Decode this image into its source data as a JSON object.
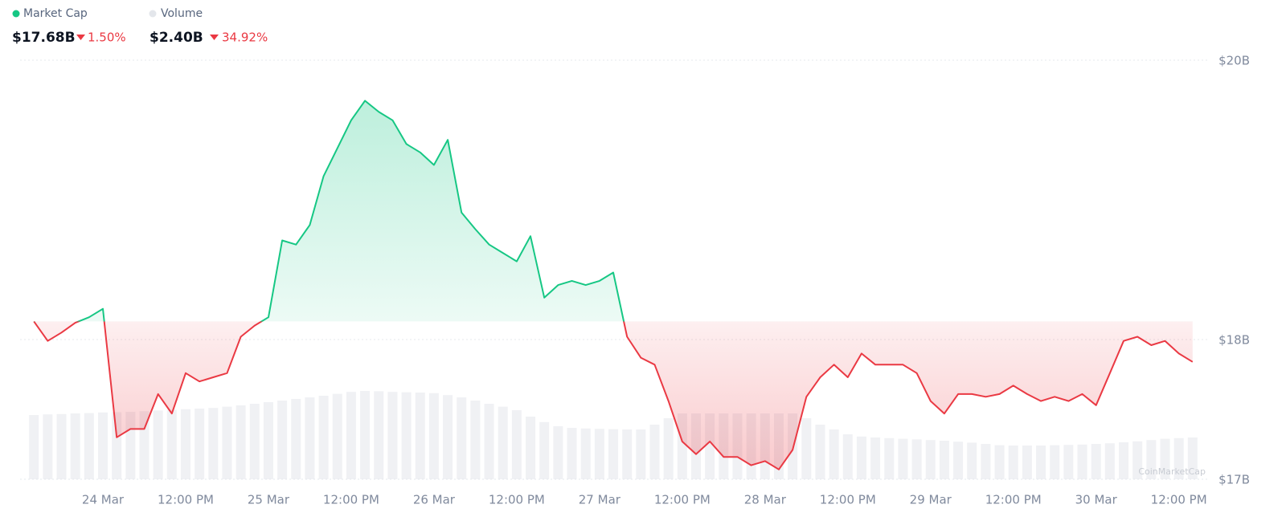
{
  "chart_data": {
    "type": "line",
    "header": {
      "series_labels": [
        "Market Cap",
        "Volume"
      ],
      "values": [
        "$17.68B",
        "$2.40B"
      ],
      "changes": [
        "1.50%",
        "34.92%"
      ]
    },
    "watermark": "CoinMarketCap",
    "x": [
      -10,
      -8,
      -6,
      -4,
      -2,
      0,
      2,
      4,
      6,
      8,
      10,
      12,
      14,
      16,
      18,
      20,
      22,
      24,
      26,
      28,
      30,
      32,
      34,
      36,
      38,
      40,
      42,
      44,
      46,
      48,
      50,
      52,
      54,
      56,
      58,
      60,
      62,
      64,
      66,
      68,
      70,
      72,
      74,
      76,
      78,
      80,
      82,
      84,
      86,
      88,
      90,
      92,
      94,
      96,
      98,
      100,
      102,
      104,
      106,
      108,
      110,
      112,
      114,
      116,
      118,
      120,
      122,
      124,
      126,
      128,
      130,
      132,
      134,
      136,
      138,
      140,
      142,
      144,
      146,
      148,
      150,
      152,
      154,
      156,
      158
    ],
    "series": [
      {
        "name": "Market Cap",
        "color": "#16c784",
        "down_color": "#ea3943",
        "values": [
          18.13,
          17.99,
          18.05,
          18.12,
          18.16,
          18.22,
          17.3,
          17.36,
          17.36,
          17.61,
          17.47,
          17.76,
          17.7,
          17.73,
          17.76,
          18.02,
          18.1,
          18.16,
          18.71,
          18.68,
          18.82,
          19.17,
          19.37,
          19.57,
          19.71,
          19.63,
          19.57,
          19.4,
          19.34,
          19.25,
          19.43,
          18.91,
          18.79,
          18.68,
          18.62,
          18.56,
          18.74,
          18.3,
          18.39,
          18.42,
          18.39,
          18.42,
          18.48,
          18.02,
          17.87,
          17.82,
          17.56,
          17.27,
          17.18,
          17.27,
          17.16,
          17.16,
          17.1,
          17.13,
          17.07,
          17.21,
          17.59,
          17.73,
          17.82,
          17.73,
          17.9,
          17.82,
          17.82,
          17.82,
          17.76,
          17.56,
          17.47,
          17.61,
          17.61,
          17.59,
          17.61,
          17.67,
          17.61,
          17.56,
          17.59,
          17.56,
          17.61,
          17.53,
          17.76,
          17.99,
          18.02,
          17.96,
          17.99,
          17.9,
          17.84
        ]
      },
      {
        "name": "Volume",
        "color": "#e3e6eb",
        "values": [
          2.0,
          2.02,
          2.03,
          2.05,
          2.06,
          2.08,
          2.09,
          2.1,
          2.12,
          2.14,
          2.16,
          2.18,
          2.2,
          2.22,
          2.26,
          2.3,
          2.35,
          2.4,
          2.45,
          2.5,
          2.55,
          2.6,
          2.66,
          2.72,
          2.75,
          2.74,
          2.72,
          2.71,
          2.7,
          2.68,
          2.62,
          2.55,
          2.45,
          2.35,
          2.26,
          2.15,
          1.95,
          1.78,
          1.65,
          1.6,
          1.58,
          1.57,
          1.56,
          1.55,
          1.55,
          1.7,
          1.9,
          2.05,
          2.05,
          2.05,
          2.05,
          2.05,
          2.05,
          2.05,
          2.05,
          2.05,
          1.9,
          1.7,
          1.55,
          1.4,
          1.33,
          1.3,
          1.28,
          1.26,
          1.24,
          1.22,
          1.2,
          1.17,
          1.14,
          1.1,
          1.06,
          1.05,
          1.05,
          1.05,
          1.06,
          1.07,
          1.08,
          1.1,
          1.12,
          1.15,
          1.18,
          1.22,
          1.26,
          1.28,
          1.3
        ]
      }
    ],
    "reference_value": 18.13,
    "xlim": [
      -10.5,
      160
    ],
    "xticks": [
      {
        "value": 0,
        "label": "24 Mar"
      },
      {
        "value": 12,
        "label": "12:00 PM"
      },
      {
        "value": 24,
        "label": "25 Mar"
      },
      {
        "value": 36,
        "label": "12:00 PM"
      },
      {
        "value": 48,
        "label": "26 Mar"
      },
      {
        "value": 60,
        "label": "12:00 PM"
      },
      {
        "value": 72,
        "label": "27 Mar"
      },
      {
        "value": 84,
        "label": "12:00 PM"
      },
      {
        "value": 96,
        "label": "28 Mar"
      },
      {
        "value": 108,
        "label": "12:00 PM"
      },
      {
        "value": 120,
        "label": "29 Mar"
      },
      {
        "value": 132,
        "label": "12:00 PM"
      },
      {
        "value": 144,
        "label": "30 Mar"
      },
      {
        "value": 156,
        "label": "12:00 PM"
      }
    ],
    "ylim": [
      17,
      20
    ],
    "yticks": [
      {
        "value": 17,
        "label": "$17B"
      },
      {
        "value": 18,
        "label": "$18B"
      },
      {
        "value": 20,
        "label": "$20B"
      }
    ],
    "grid": true
  }
}
